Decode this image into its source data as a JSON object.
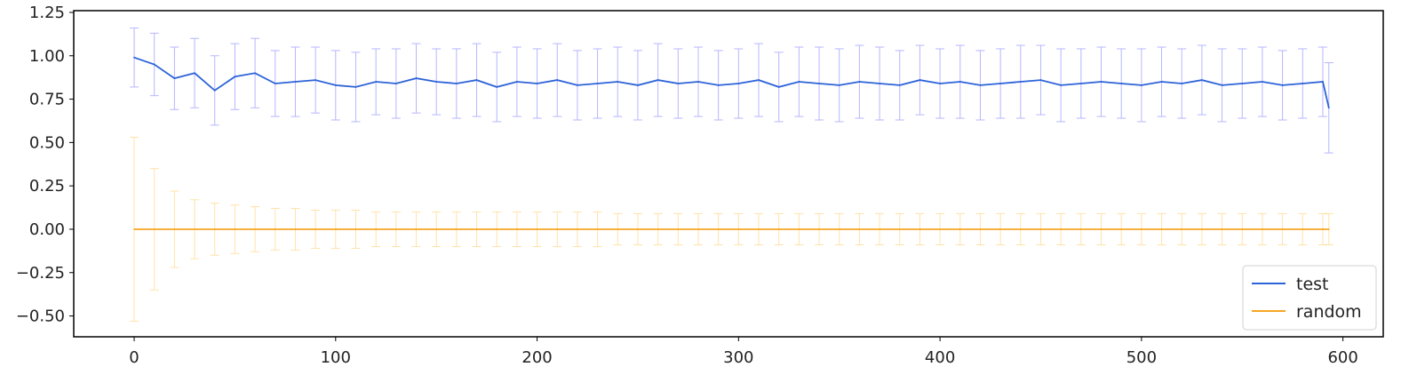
{
  "chart_data": {
    "type": "line",
    "title": "",
    "xlabel": "",
    "ylabel": "",
    "xlim": [
      -30,
      620
    ],
    "ylim": [
      -0.62,
      1.26
    ],
    "x_ticks": [
      0,
      100,
      200,
      300,
      400,
      500,
      600
    ],
    "y_ticks": [
      -0.5,
      -0.25,
      0.0,
      0.25,
      0.5,
      0.75,
      1.0,
      1.25
    ],
    "x_tick_labels": [
      "0",
      "100",
      "200",
      "300",
      "400",
      "500",
      "600"
    ],
    "y_tick_labels": [
      "−0.50",
      "−0.25",
      "0.00",
      "0.25",
      "0.50",
      "0.75",
      "1.00",
      "1.25"
    ],
    "grid": false,
    "legend_position": "lower-right",
    "error_bars": true,
    "series": [
      {
        "name": "test",
        "color": "#2d63d8",
        "error_color": "#7b7bff",
        "x": [
          0,
          10,
          20,
          30,
          40,
          50,
          60,
          70,
          80,
          90,
          100,
          110,
          120,
          130,
          140,
          150,
          160,
          170,
          180,
          190,
          200,
          210,
          220,
          230,
          240,
          250,
          260,
          270,
          280,
          290,
          300,
          310,
          320,
          330,
          340,
          350,
          360,
          370,
          380,
          390,
          400,
          410,
          420,
          430,
          440,
          450,
          460,
          470,
          480,
          490,
          500,
          510,
          520,
          530,
          540,
          550,
          560,
          570,
          580,
          590,
          593
        ],
        "y": [
          0.99,
          0.95,
          0.87,
          0.9,
          0.8,
          0.88,
          0.9,
          0.84,
          0.85,
          0.86,
          0.83,
          0.82,
          0.85,
          0.84,
          0.87,
          0.85,
          0.84,
          0.86,
          0.82,
          0.85,
          0.84,
          0.86,
          0.83,
          0.84,
          0.85,
          0.83,
          0.86,
          0.84,
          0.85,
          0.83,
          0.84,
          0.86,
          0.82,
          0.85,
          0.84,
          0.83,
          0.85,
          0.84,
          0.83,
          0.86,
          0.84,
          0.85,
          0.83,
          0.84,
          0.85,
          0.86,
          0.83,
          0.84,
          0.85,
          0.84,
          0.83,
          0.85,
          0.84,
          0.86,
          0.83,
          0.84,
          0.85,
          0.83,
          0.84,
          0.85,
          0.7
        ],
        "error": [
          0.17,
          0.18,
          0.18,
          0.2,
          0.2,
          0.19,
          0.2,
          0.19,
          0.2,
          0.19,
          0.2,
          0.2,
          0.19,
          0.2,
          0.2,
          0.19,
          0.2,
          0.21,
          0.2,
          0.2,
          0.2,
          0.21,
          0.2,
          0.2,
          0.2,
          0.2,
          0.21,
          0.2,
          0.2,
          0.2,
          0.2,
          0.21,
          0.2,
          0.2,
          0.21,
          0.21,
          0.21,
          0.21,
          0.2,
          0.2,
          0.2,
          0.21,
          0.2,
          0.2,
          0.21,
          0.2,
          0.21,
          0.2,
          0.2,
          0.2,
          0.21,
          0.2,
          0.2,
          0.2,
          0.21,
          0.2,
          0.2,
          0.2,
          0.2,
          0.2,
          0.26
        ]
      },
      {
        "name": "random",
        "color": "#f5a623",
        "error_color": "#ffcc66",
        "x": [
          0,
          10,
          20,
          30,
          40,
          50,
          60,
          70,
          80,
          90,
          100,
          110,
          120,
          130,
          140,
          150,
          160,
          170,
          180,
          190,
          200,
          210,
          220,
          230,
          240,
          250,
          260,
          270,
          280,
          290,
          300,
          310,
          320,
          330,
          340,
          350,
          360,
          370,
          380,
          390,
          400,
          410,
          420,
          430,
          440,
          450,
          460,
          470,
          480,
          490,
          500,
          510,
          520,
          530,
          540,
          550,
          560,
          570,
          580,
          590,
          593
        ],
        "y": [
          0.0,
          0.0,
          0.0,
          0.0,
          0.0,
          0.0,
          0.0,
          0.0,
          0.0,
          0.0,
          0.0,
          0.0,
          0.0,
          0.0,
          0.0,
          0.0,
          0.0,
          0.0,
          0.0,
          0.0,
          0.0,
          0.0,
          0.0,
          0.0,
          0.0,
          0.0,
          0.0,
          0.0,
          0.0,
          0.0,
          0.0,
          0.0,
          0.0,
          0.0,
          0.0,
          0.0,
          0.0,
          0.0,
          0.0,
          0.0,
          0.0,
          0.0,
          0.0,
          0.0,
          0.0,
          0.0,
          0.0,
          0.0,
          0.0,
          0.0,
          0.0,
          0.0,
          0.0,
          0.0,
          0.0,
          0.0,
          0.0,
          0.0,
          0.0,
          0.0,
          0.0
        ],
        "error": [
          0.53,
          0.35,
          0.22,
          0.17,
          0.15,
          0.14,
          0.13,
          0.12,
          0.12,
          0.11,
          0.11,
          0.11,
          0.1,
          0.1,
          0.1,
          0.1,
          0.1,
          0.1,
          0.1,
          0.1,
          0.1,
          0.1,
          0.1,
          0.1,
          0.09,
          0.09,
          0.09,
          0.09,
          0.09,
          0.09,
          0.09,
          0.09,
          0.09,
          0.09,
          0.09,
          0.09,
          0.09,
          0.09,
          0.09,
          0.09,
          0.09,
          0.09,
          0.09,
          0.09,
          0.09,
          0.09,
          0.09,
          0.09,
          0.09,
          0.09,
          0.09,
          0.09,
          0.09,
          0.09,
          0.09,
          0.09,
          0.09,
          0.09,
          0.09,
          0.09,
          0.09
        ]
      }
    ]
  }
}
